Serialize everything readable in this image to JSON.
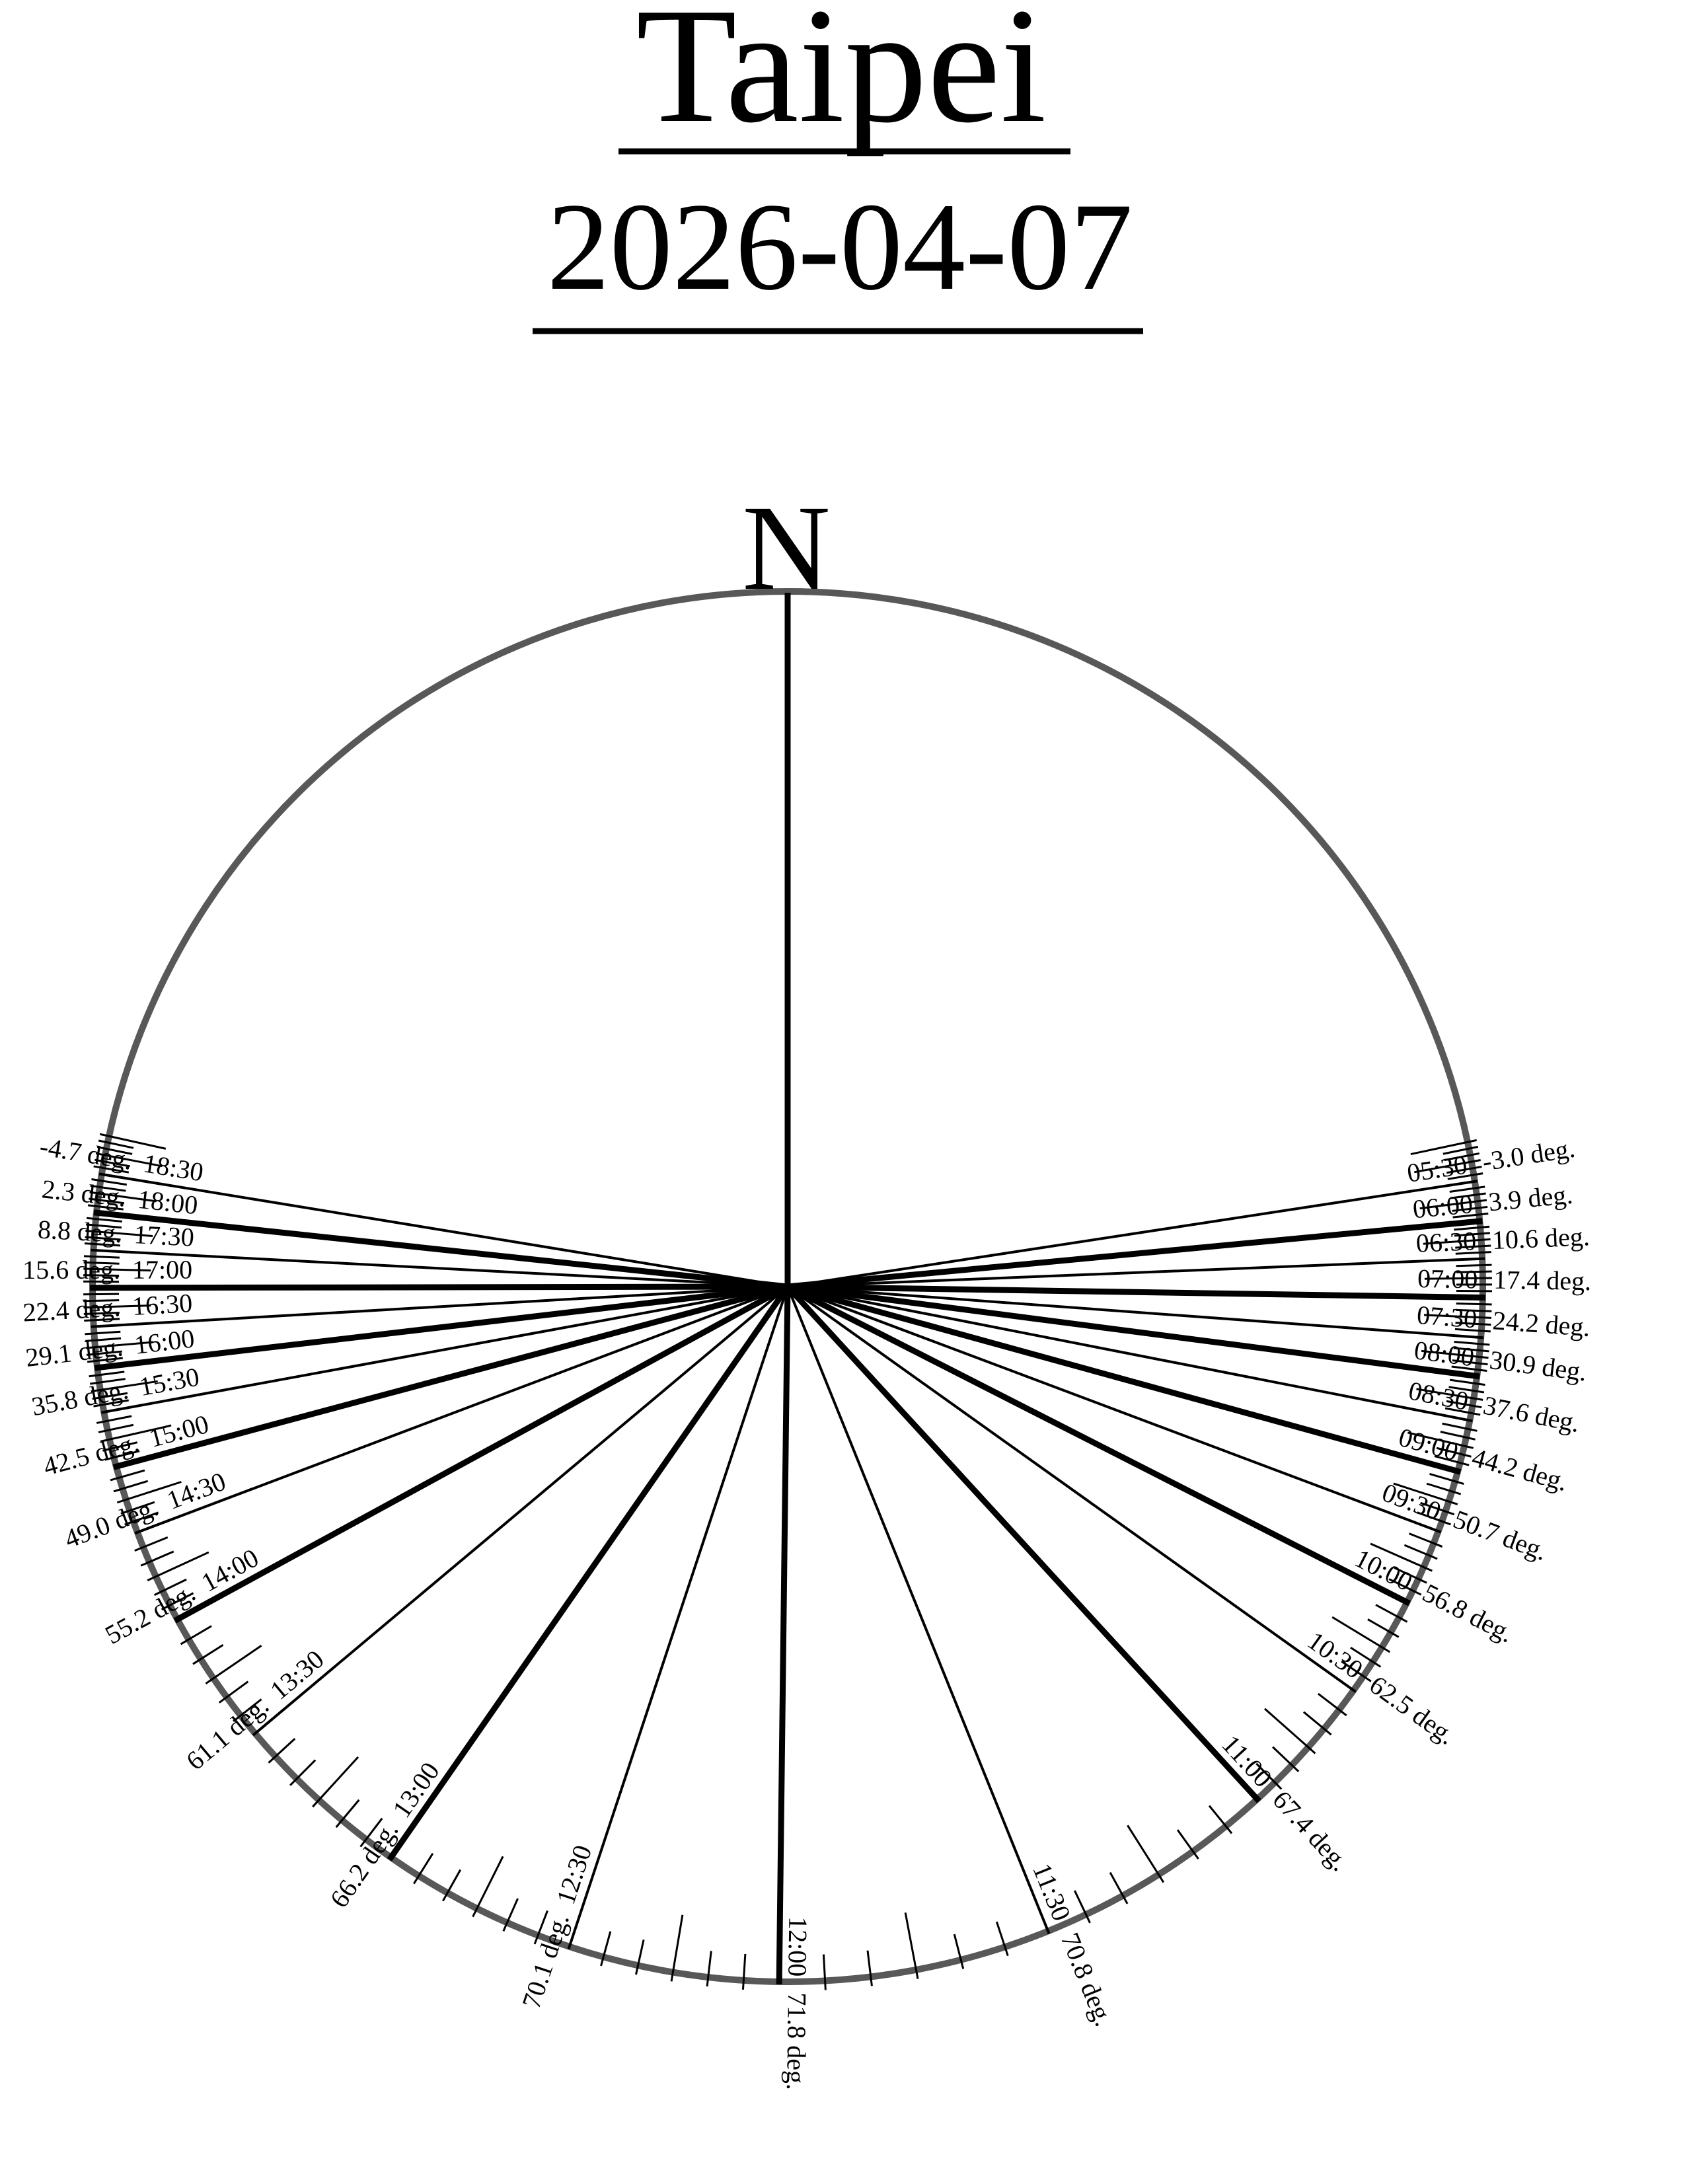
{
  "header": {
    "title": "Taipei",
    "date": "2026-04-07"
  },
  "compass": {
    "north_label": "N"
  },
  "chart_data": {
    "type": "radial-sun-path",
    "title": "Taipei",
    "subtitle": "2026-04-07",
    "units_suffix": "deg.",
    "legend_position": "none",
    "grid": "rim-ticks-every-5-min",
    "orientation": {
      "north": "up",
      "azimuth_clockwise": true
    },
    "entries": [
      {
        "time": "05:30",
        "elevation_deg": -3.0,
        "azimuth_deg": 81.3
      },
      {
        "time": "06:00",
        "elevation_deg": 3.9,
        "azimuth_deg": 84.6
      },
      {
        "time": "06:30",
        "elevation_deg": 10.6,
        "azimuth_deg": 87.7
      },
      {
        "time": "07:00",
        "elevation_deg": 17.4,
        "azimuth_deg": 90.9
      },
      {
        "time": "07:30",
        "elevation_deg": 24.2,
        "azimuth_deg": 94.2
      },
      {
        "time": "08:00",
        "elevation_deg": 30.9,
        "azimuth_deg": 97.4
      },
      {
        "time": "08:30",
        "elevation_deg": 37.6,
        "azimuth_deg": 101.1
      },
      {
        "time": "09:00",
        "elevation_deg": 44.2,
        "azimuth_deg": 105.4
      },
      {
        "time": "09:30",
        "elevation_deg": 50.7,
        "azimuth_deg": 110.6
      },
      {
        "time": "10:00",
        "elevation_deg": 56.8,
        "azimuth_deg": 117.0
      },
      {
        "time": "10:30",
        "elevation_deg": 62.5,
        "azimuth_deg": 125.5
      },
      {
        "time": "11:00",
        "elevation_deg": 67.4,
        "azimuth_deg": 137.5
      },
      {
        "time": "11:30",
        "elevation_deg": 70.8,
        "azimuth_deg": 158.0
      },
      {
        "time": "12:00",
        "elevation_deg": 71.8,
        "azimuth_deg": 180.7
      },
      {
        "time": "12:30",
        "elevation_deg": 70.1,
        "azimuth_deg": 198.3
      },
      {
        "time": "13:00",
        "elevation_deg": 66.2,
        "azimuth_deg": 214.8
      },
      {
        "time": "13:30",
        "elevation_deg": 61.1,
        "azimuth_deg": 230.0
      },
      {
        "time": "14:00",
        "elevation_deg": 55.2,
        "azimuth_deg": 241.4
      },
      {
        "time": "14:30",
        "elevation_deg": 49.0,
        "azimuth_deg": 249.3
      },
      {
        "time": "15:00",
        "elevation_deg": 42.5,
        "azimuth_deg": 255.0
      },
      {
        "time": "15:30",
        "elevation_deg": 35.8,
        "azimuth_deg": 259.6
      },
      {
        "time": "16:00",
        "elevation_deg": 29.1,
        "azimuth_deg": 263.3
      },
      {
        "time": "16:30",
        "elevation_deg": 22.4,
        "azimuth_deg": 266.7
      },
      {
        "time": "17:00",
        "elevation_deg": 15.6,
        "azimuth_deg": 269.9
      },
      {
        "time": "17:30",
        "elevation_deg": 8.8,
        "azimuth_deg": 273.0
      },
      {
        "time": "18:00",
        "elevation_deg": 2.3,
        "azimuth_deg": 276.1
      },
      {
        "time": "18:30",
        "elevation_deg": -4.7,
        "azimuth_deg": 279.3
      }
    ],
    "tick_interval_min": 5,
    "major_tick_interval_min": 15,
    "colors": {
      "rim": "#585858",
      "lines": "#000000",
      "text": "#000000",
      "background": "#ffffff"
    }
  }
}
